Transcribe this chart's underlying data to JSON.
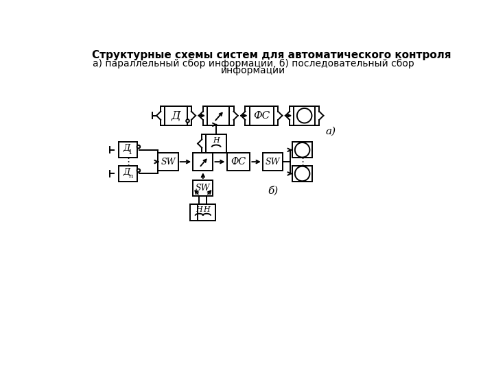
{
  "title1": "Структурные схемы систем для автоматического контроля",
  "title2": "а) параллельный сбор информации, б) последовательный сбор",
  "title3": "информации",
  "bg_color": "#ffffff",
  "lw": 1.4
}
